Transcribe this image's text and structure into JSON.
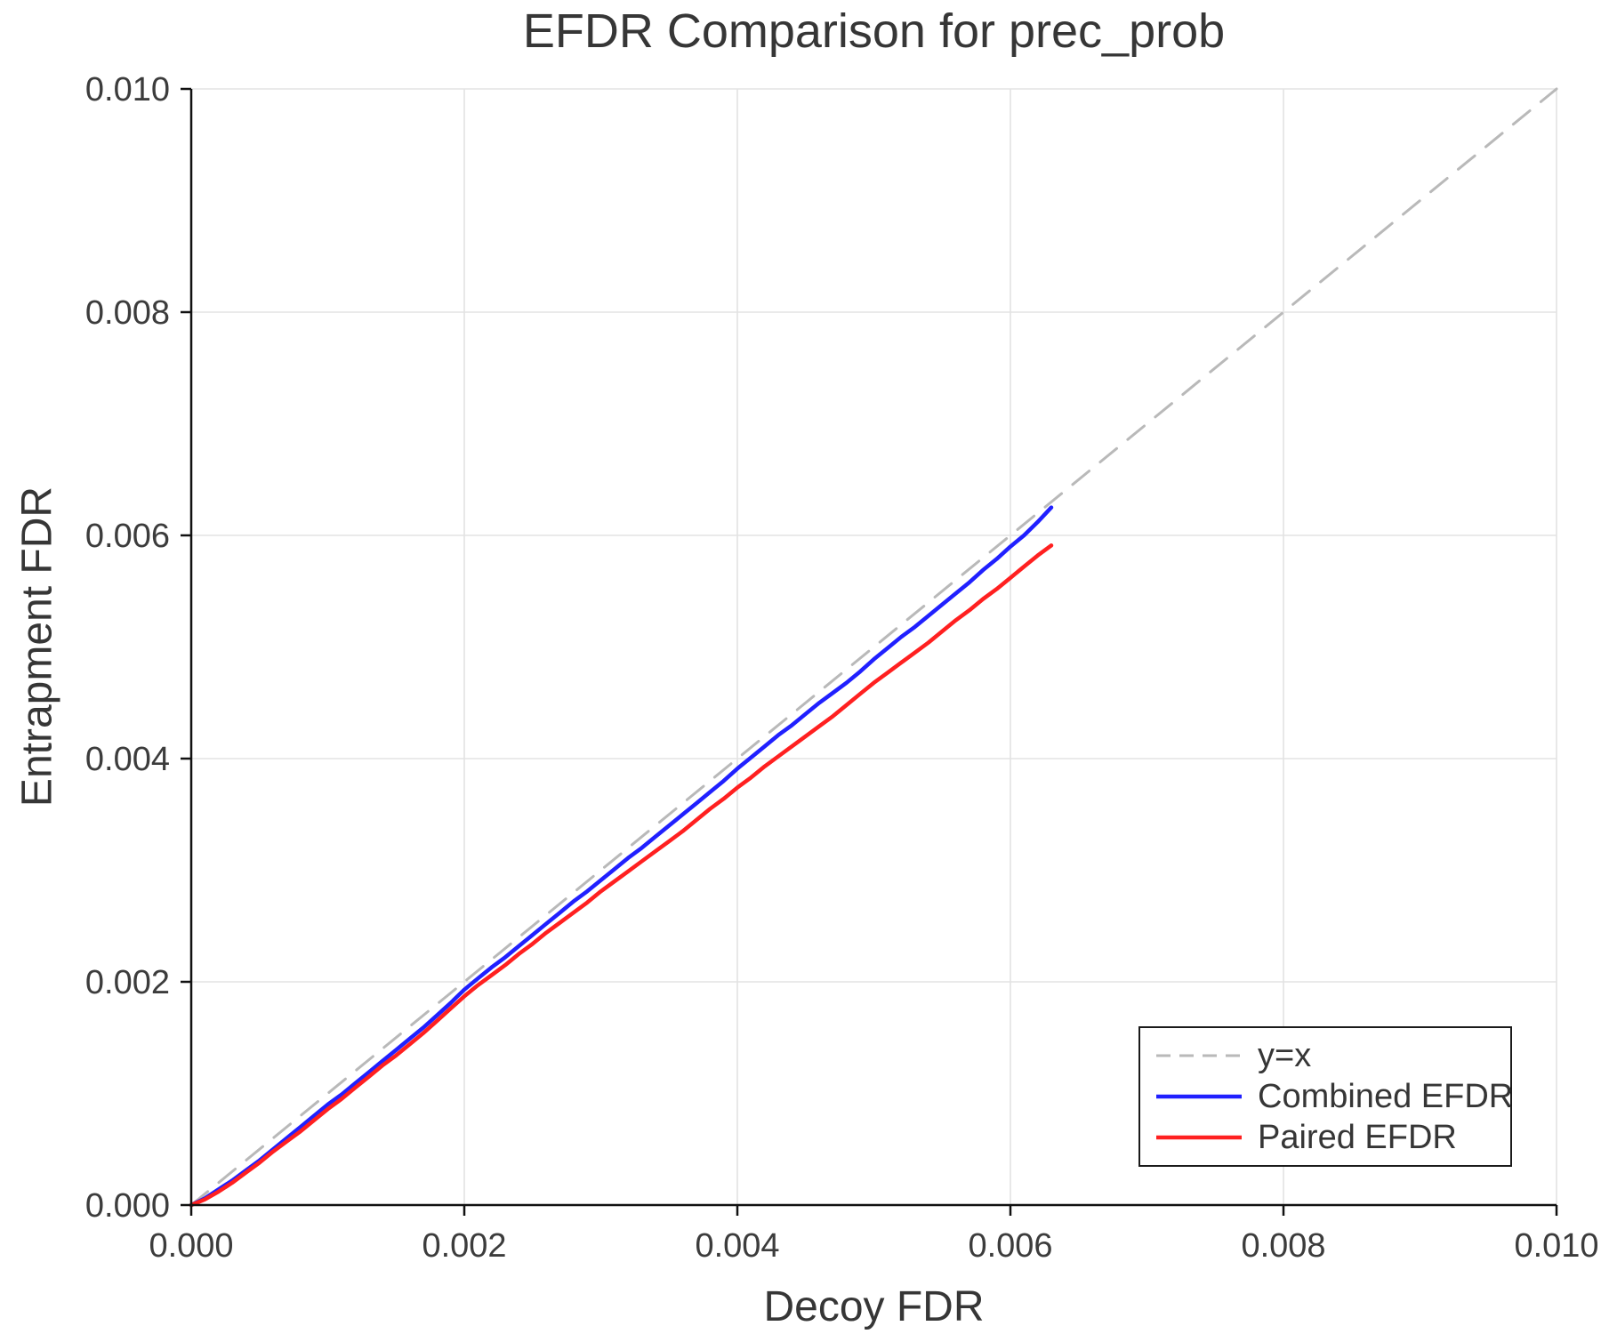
{
  "chart_data": {
    "type": "line",
    "title": "EFDR Comparison for prec_prob",
    "xlabel": "Decoy FDR",
    "ylabel": "Entrapment FDR",
    "xlim": [
      0.0,
      0.01
    ],
    "ylim": [
      0.0,
      0.01
    ],
    "x_ticks": [
      0.0,
      0.002,
      0.004,
      0.006,
      0.008,
      0.01
    ],
    "y_ticks": [
      0.0,
      0.002,
      0.004,
      0.006,
      0.008,
      0.01
    ],
    "tick_decimals": 3,
    "grid": true,
    "grid_color": "#e3e3e3",
    "legend_position": "lower right",
    "series": [
      {
        "name": "y=x",
        "color": "#b9b9b9",
        "dash": true,
        "width": 3,
        "points": [
          [
            0.0,
            0.0
          ],
          [
            0.01,
            0.01
          ]
        ]
      },
      {
        "name": "Combined EFDR",
        "color": "#2020ff",
        "dash": false,
        "width": 4.5,
        "points": [
          [
            0.0,
            0.0
          ],
          [
            0.0001,
            6e-05
          ],
          [
            0.0002,
            0.00014
          ],
          [
            0.0003,
            0.00022
          ],
          [
            0.0004,
            0.00031
          ],
          [
            0.0005,
            0.0004
          ],
          [
            0.0006,
            0.0005
          ],
          [
            0.0007,
            0.0006
          ],
          [
            0.0008,
            0.0007
          ],
          [
            0.0009,
            0.0008
          ],
          [
            0.001,
            0.0009
          ],
          [
            0.0011,
            0.00099
          ],
          [
            0.0012,
            0.00109
          ],
          [
            0.0013,
            0.00119
          ],
          [
            0.0014,
            0.00129
          ],
          [
            0.0015,
            0.00139
          ],
          [
            0.0016,
            0.00149
          ],
          [
            0.0017,
            0.00159
          ],
          [
            0.0018,
            0.0017
          ],
          [
            0.0019,
            0.00181
          ],
          [
            0.002,
            0.00193
          ],
          [
            0.0021,
            0.00203
          ],
          [
            0.0022,
            0.00213
          ],
          [
            0.0023,
            0.00222
          ],
          [
            0.0024,
            0.00232
          ],
          [
            0.0025,
            0.00242
          ],
          [
            0.0026,
            0.00252
          ],
          [
            0.0027,
            0.00262
          ],
          [
            0.0028,
            0.00272
          ],
          [
            0.0029,
            0.00281
          ],
          [
            0.003,
            0.00291
          ],
          [
            0.0031,
            0.00301
          ],
          [
            0.0032,
            0.00311
          ],
          [
            0.0033,
            0.0032
          ],
          [
            0.0034,
            0.0033
          ],
          [
            0.0035,
            0.0034
          ],
          [
            0.0036,
            0.0035
          ],
          [
            0.0037,
            0.0036
          ],
          [
            0.0038,
            0.0037
          ],
          [
            0.0039,
            0.0038
          ],
          [
            0.004,
            0.00391
          ],
          [
            0.0041,
            0.00401
          ],
          [
            0.0042,
            0.00411
          ],
          [
            0.0043,
            0.00421
          ],
          [
            0.0044,
            0.0043
          ],
          [
            0.0045,
            0.0044
          ],
          [
            0.0046,
            0.0045
          ],
          [
            0.0047,
            0.00459
          ],
          [
            0.0048,
            0.00468
          ],
          [
            0.0049,
            0.00478
          ],
          [
            0.005,
            0.00489
          ],
          [
            0.0051,
            0.00499
          ],
          [
            0.0052,
            0.00509
          ],
          [
            0.0053,
            0.00518
          ],
          [
            0.0054,
            0.00528
          ],
          [
            0.0055,
            0.00538
          ],
          [
            0.0056,
            0.00548
          ],
          [
            0.0057,
            0.00558
          ],
          [
            0.0058,
            0.00569
          ],
          [
            0.0059,
            0.00579
          ],
          [
            0.006,
            0.0059
          ],
          [
            0.0061,
            0.006
          ],
          [
            0.0062,
            0.00612
          ],
          [
            0.0063,
            0.00625
          ]
        ]
      },
      {
        "name": "Paired EFDR",
        "color": "#ff2020",
        "dash": false,
        "width": 4.5,
        "points": [
          [
            0.0,
            0.0
          ],
          [
            0.0001,
            5e-05
          ],
          [
            0.0002,
            0.00012
          ],
          [
            0.0003,
            0.0002
          ],
          [
            0.0004,
            0.00029
          ],
          [
            0.0005,
            0.00038
          ],
          [
            0.0006,
            0.00048
          ],
          [
            0.0007,
            0.00057
          ],
          [
            0.0008,
            0.00066
          ],
          [
            0.0009,
            0.00076
          ],
          [
            0.001,
            0.00086
          ],
          [
            0.0011,
            0.00095
          ],
          [
            0.0012,
            0.00105
          ],
          [
            0.0013,
            0.00115
          ],
          [
            0.0014,
            0.00125
          ],
          [
            0.0015,
            0.00134
          ],
          [
            0.0016,
            0.00144
          ],
          [
            0.0017,
            0.00154
          ],
          [
            0.0018,
            0.00165
          ],
          [
            0.0019,
            0.00176
          ],
          [
            0.002,
            0.00187
          ],
          [
            0.0021,
            0.00197
          ],
          [
            0.0022,
            0.00206
          ],
          [
            0.0023,
            0.00215
          ],
          [
            0.0024,
            0.00225
          ],
          [
            0.0025,
            0.00234
          ],
          [
            0.0026,
            0.00244
          ],
          [
            0.0027,
            0.00253
          ],
          [
            0.0028,
            0.00262
          ],
          [
            0.0029,
            0.00271
          ],
          [
            0.003,
            0.00281
          ],
          [
            0.0031,
            0.0029
          ],
          [
            0.0032,
            0.00299
          ],
          [
            0.0033,
            0.00308
          ],
          [
            0.0034,
            0.00317
          ],
          [
            0.0035,
            0.00326
          ],
          [
            0.0036,
            0.00335
          ],
          [
            0.0037,
            0.00345
          ],
          [
            0.0038,
            0.00355
          ],
          [
            0.0039,
            0.00364
          ],
          [
            0.004,
            0.00374
          ],
          [
            0.0041,
            0.00383
          ],
          [
            0.0042,
            0.00393
          ],
          [
            0.0043,
            0.00402
          ],
          [
            0.0044,
            0.00411
          ],
          [
            0.0045,
            0.0042
          ],
          [
            0.0046,
            0.00429
          ],
          [
            0.0047,
            0.00438
          ],
          [
            0.0048,
            0.00448
          ],
          [
            0.0049,
            0.00458
          ],
          [
            0.005,
            0.00468
          ],
          [
            0.0051,
            0.00477
          ],
          [
            0.0052,
            0.00486
          ],
          [
            0.0053,
            0.00495
          ],
          [
            0.0054,
            0.00504
          ],
          [
            0.0055,
            0.00514
          ],
          [
            0.0056,
            0.00524
          ],
          [
            0.0057,
            0.00533
          ],
          [
            0.0058,
            0.00543
          ],
          [
            0.0059,
            0.00552
          ],
          [
            0.006,
            0.00562
          ],
          [
            0.0061,
            0.00572
          ],
          [
            0.0062,
            0.00582
          ],
          [
            0.0063,
            0.00591
          ]
        ]
      }
    ]
  }
}
